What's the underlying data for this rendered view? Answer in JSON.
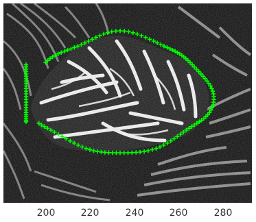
{
  "image": {
    "description": "",
    "background_color": "#000000",
    "stripe_color": "#ffffff",
    "marker_color": "#00ff00"
  },
  "x_axis": {
    "tick_labels": [
      "200",
      "220",
      "240",
      "260",
      "280"
    ]
  }
}
